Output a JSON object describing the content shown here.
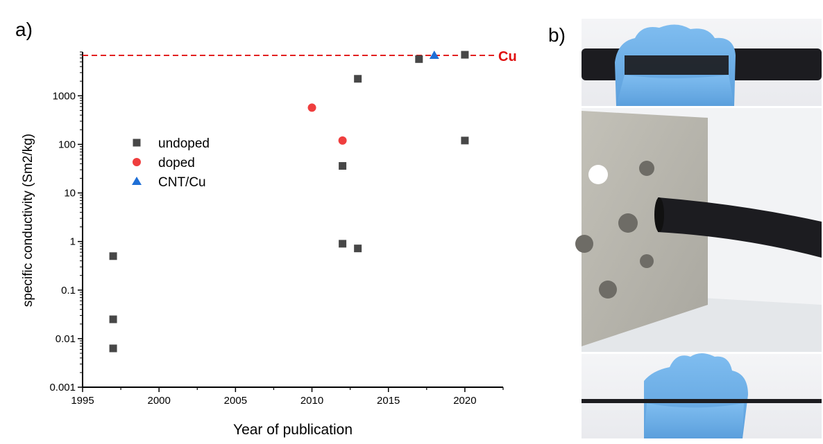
{
  "panel_labels": {
    "a": "a)",
    "b": "b)"
  },
  "chart_data": {
    "type": "scatter",
    "title": "",
    "xlabel": "Year of publication",
    "ylabel": "specific conductivity (Sm2/kg)",
    "xlim": [
      1995,
      2022.5
    ],
    "ylim": [
      0.001,
      8000
    ],
    "yscale": "log",
    "xticks": [
      1995,
      2000,
      2005,
      2010,
      2015,
      2020
    ],
    "yticks": [
      {
        "value": 0.001,
        "label": "0.001"
      },
      {
        "value": 0.01,
        "label": "0.01"
      },
      {
        "value": 0.1,
        "label": "0.1"
      },
      {
        "value": 1,
        "label": "1"
      },
      {
        "value": 10,
        "label": "10"
      },
      {
        "value": 100,
        "label": "100"
      },
      {
        "value": 1000,
        "label": "1000"
      }
    ],
    "grid": false,
    "legend_placement": "upper-left",
    "series": [
      {
        "name": "undoped",
        "marker": "square",
        "color": "#474747",
        "points": [
          [
            1997,
            0.5
          ],
          [
            1997,
            0.025
          ],
          [
            1997,
            0.0063
          ],
          [
            2012,
            36
          ],
          [
            2012,
            0.9
          ],
          [
            2013,
            2240
          ],
          [
            2013,
            0.72
          ],
          [
            2017,
            5700
          ],
          [
            2020,
            7000
          ],
          [
            2020,
            120
          ]
        ]
      },
      {
        "name": "doped",
        "marker": "circle",
        "color": "#ef3e3e",
        "points": [
          [
            2010,
            570
          ],
          [
            2012,
            120
          ]
        ]
      },
      {
        "name": "CNT/Cu",
        "marker": "triangle",
        "color": "#1f6fd6",
        "points": [
          [
            2018,
            6800
          ]
        ]
      }
    ],
    "reference_line": {
      "label": "Cu",
      "value": 6800,
      "color": "#e01010",
      "style": "dashed"
    }
  },
  "photos": {
    "description_icons": [
      "gloved-hand-holding-thick-cable",
      "cable-through-metal-block",
      "gloved-hand-holding-thin-cable"
    ],
    "glove_color": "#6aaee6",
    "cable_color": "#1c1c20",
    "metal_color": "#b7b5ac"
  }
}
